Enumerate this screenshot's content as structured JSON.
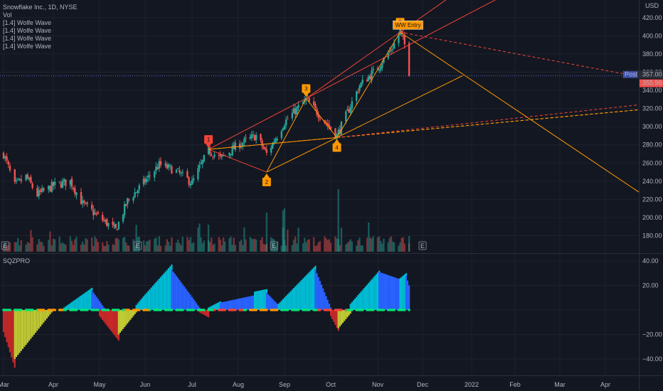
{
  "header": {
    "symbol": "Snowflake Inc., 1D, NYSE",
    "volume_label": "Vol",
    "overlays": [
      "[1.4] Wolfe Wave",
      "[1.4] Wolfe Wave",
      "[1.4] Wolfe Wave",
      "[1.4] Wolfe Wave"
    ]
  },
  "price_axis": {
    "currency": "USD",
    "ticks": [
      "420.00",
      "400.00",
      "380.00",
      "360.00",
      "340.00",
      "320.00",
      "300.00",
      "280.00",
      "260.00",
      "240.00",
      "220.00",
      "200.00",
      "180.00"
    ],
    "post_tag": "Post",
    "post_value": "357.00",
    "last_value": "355.96"
  },
  "time_axis": [
    "Mar",
    "Apr",
    "May",
    "Jun",
    "Jul",
    "Aug",
    "Sep",
    "Oct",
    "Nov",
    "Dec",
    "2022",
    "Feb",
    "Mar",
    "Apr"
  ],
  "pattern_labels": {
    "p1": "1",
    "p2": "2",
    "p3": "3",
    "p4": "4",
    "p5": "5",
    "entry": "WW Entry",
    "earnings": "E"
  },
  "indicator": {
    "name": "SQZPRO",
    "ticks": [
      "40.00",
      "20.00",
      "0.00",
      "−20.00",
      "−40.00"
    ]
  },
  "colors": {
    "background": "#131722",
    "up": "#26a69a",
    "down": "#ef5350",
    "wave": "#ff9800",
    "wave_red": "#f44336",
    "momo_cyan": "#00bcd4",
    "momo_blue": "#2962ff",
    "momo_red": "#c62828",
    "momo_yellow": "#c0ca33",
    "squeeze_green": "#00e676"
  },
  "chart_data": [
    {
      "type": "candlestick",
      "title": "Snowflake Inc., 1D, NYSE",
      "ylabel": "USD",
      "ylim": [
        160,
        430
      ],
      "x": [
        "Mar",
        "Apr",
        "May",
        "Jun",
        "Jul",
        "Aug",
        "Sep",
        "Oct",
        "Nov",
        "Dec",
        "2022",
        "Feb",
        "Mar",
        "Apr"
      ],
      "price_path": [
        {
          "t": "2021-03-01",
          "close": 270
        },
        {
          "t": "2021-03-08",
          "close": 235
        },
        {
          "t": "2021-03-15",
          "close": 245
        },
        {
          "t": "2021-03-22",
          "close": 225
        },
        {
          "t": "2021-04-01",
          "close": 235
        },
        {
          "t": "2021-04-12",
          "close": 240
        },
        {
          "t": "2021-04-20",
          "close": 215
        },
        {
          "t": "2021-05-01",
          "close": 200
        },
        {
          "t": "2021-05-12",
          "close": 186
        },
        {
          "t": "2021-05-20",
          "close": 218
        },
        {
          "t": "2021-06-01",
          "close": 240
        },
        {
          "t": "2021-06-10",
          "close": 258
        },
        {
          "t": "2021-06-20",
          "close": 252
        },
        {
          "t": "2021-07-01",
          "close": 238
        },
        {
          "t": "2021-07-12",
          "close": 274
        },
        {
          "t": "2021-07-20",
          "close": 265
        },
        {
          "t": "2021-08-01",
          "close": 280
        },
        {
          "t": "2021-08-13",
          "close": 290
        },
        {
          "t": "2021-08-20",
          "close": 270
        },
        {
          "t": "2021-09-01",
          "close": 305
        },
        {
          "t": "2021-09-15",
          "close": 330
        },
        {
          "t": "2021-09-25",
          "close": 310
        },
        {
          "t": "2021-10-05",
          "close": 290
        },
        {
          "t": "2021-10-20",
          "close": 345
        },
        {
          "t": "2021-11-01",
          "close": 365
        },
        {
          "t": "2021-11-10",
          "close": 385
        },
        {
          "t": "2021-11-16",
          "close": 404
        },
        {
          "t": "2021-11-19",
          "close": 390
        },
        {
          "t": "2021-11-22",
          "close": 356
        }
      ],
      "wolfe_points": [
        {
          "label": "1",
          "t": "2021-07-12",
          "price": 275
        },
        {
          "label": "2",
          "t": "2021-08-20",
          "price": 250
        },
        {
          "label": "3",
          "t": "2021-09-15",
          "price": 331
        },
        {
          "label": "4",
          "t": "2021-10-05",
          "price": 288
        },
        {
          "label": "5",
          "t": "2021-11-16",
          "price": 404
        }
      ]
    },
    {
      "type": "bar",
      "title": "SQZPRO",
      "ylim": [
        -48,
        48
      ],
      "segments": [
        {
          "from": "2021-03-01",
          "to": "2021-03-08",
          "color": "momo_red",
          "start": -18,
          "end": -47
        },
        {
          "from": "2021-03-08",
          "to": "2021-03-31",
          "color": "momo_yellow",
          "start": -40,
          "end": -2
        },
        {
          "from": "2021-04-08",
          "to": "2021-04-26",
          "color": "momo_cyan",
          "start": 2,
          "end": 18
        },
        {
          "from": "2021-04-26",
          "to": "2021-05-04",
          "color": "momo_blue",
          "start": 16,
          "end": 2
        },
        {
          "from": "2021-05-01",
          "to": "2021-05-14",
          "color": "momo_red",
          "start": -5,
          "end": -25
        },
        {
          "from": "2021-05-14",
          "to": "2021-05-26",
          "color": "momo_yellow",
          "start": -20,
          "end": -2
        },
        {
          "from": "2021-05-26",
          "to": "2021-06-18",
          "color": "momo_cyan",
          "start": 4,
          "end": 37
        },
        {
          "from": "2021-06-18",
          "to": "2021-07-06",
          "color": "momo_blue",
          "start": 33,
          "end": 2
        },
        {
          "from": "2021-07-06",
          "to": "2021-07-12",
          "color": "momo_red",
          "start": -2,
          "end": -6
        },
        {
          "from": "2021-07-12",
          "to": "2021-07-20",
          "color": "momo_cyan",
          "start": 2,
          "end": 7
        },
        {
          "from": "2021-07-20",
          "to": "2021-08-12",
          "color": "momo_blue",
          "start": 6,
          "end": 12
        },
        {
          "from": "2021-08-12",
          "to": "2021-08-20",
          "color": "momo_cyan",
          "start": 15,
          "end": 17
        },
        {
          "from": "2021-08-20",
          "to": "2021-08-28",
          "color": "momo_blue",
          "start": 14,
          "end": 4
        },
        {
          "from": "2021-08-28",
          "to": "2021-09-21",
          "color": "momo_cyan",
          "start": 5,
          "end": 36
        },
        {
          "from": "2021-09-21",
          "to": "2021-10-01",
          "color": "momo_blue",
          "start": 33,
          "end": 2
        },
        {
          "from": "2021-10-01",
          "to": "2021-10-06",
          "color": "momo_red",
          "start": -5,
          "end": -17
        },
        {
          "from": "2021-10-06",
          "to": "2021-10-14",
          "color": "momo_yellow",
          "start": -15,
          "end": -3
        },
        {
          "from": "2021-10-14",
          "to": "2021-11-02",
          "color": "momo_cyan",
          "start": 5,
          "end": 32
        },
        {
          "from": "2021-11-02",
          "to": "2021-11-16",
          "color": "momo_blue",
          "start": 31,
          "end": 25
        },
        {
          "from": "2021-11-16",
          "to": "2021-11-20",
          "color": "momo_cyan",
          "start": 26,
          "end": 30
        },
        {
          "from": "2021-11-20",
          "to": "2021-11-22",
          "color": "momo_blue",
          "start": 28,
          "end": 20
        }
      ]
    }
  ]
}
